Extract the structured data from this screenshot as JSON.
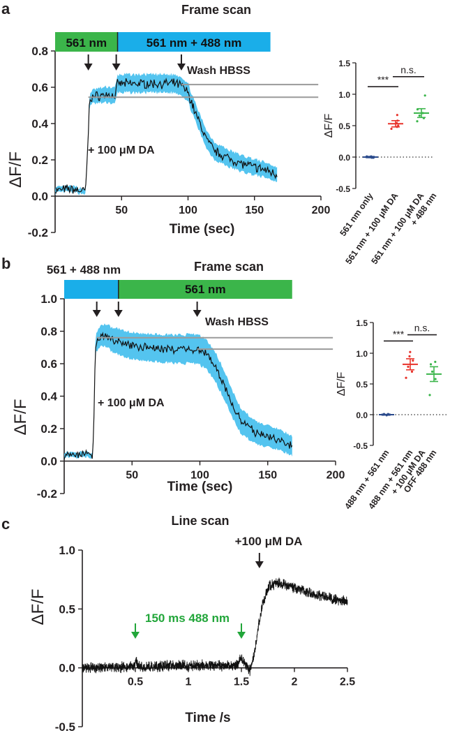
{
  "figure": {
    "panel_labels": [
      "a",
      "b",
      "c"
    ],
    "colors": {
      "green": "#3bb54a",
      "blue": "#1aaee9",
      "shade": "#54c4ef",
      "red": "#e8332b",
      "scatter_green": "#3ab54a",
      "navy": "#2a4a8c",
      "gray": "#9a9a9a",
      "text": "#231f20",
      "arrow_green": "#22a63a"
    }
  },
  "chart_data": [
    {
      "id": "a_trace",
      "type": "line",
      "title": "Frame scan",
      "xlabel": "Time (sec)",
      "ylabel": "ΔF/F",
      "xlim": [
        0,
        200
      ],
      "ylim": [
        -0.2,
        0.8
      ],
      "xticks": [
        50,
        100,
        150,
        200
      ],
      "yticks": [
        -0.2,
        0.0,
        0.2,
        0.4,
        0.6,
        0.8
      ],
      "ytick_labels": [
        "-0.2",
        "0.0",
        "0.2",
        "0.4",
        "0.6",
        "0.8"
      ],
      "bars": [
        {
          "label": "561 nm",
          "from": 0,
          "to": 47,
          "color": "green"
        },
        {
          "label": "561 nm + 488 nm",
          "from": 47,
          "to": 162,
          "color": "blue"
        }
      ],
      "arrows": [
        25,
        46,
        95
      ],
      "annotations": [
        {
          "text": "Wash HBSS",
          "x": 101,
          "y": 0.68
        },
        {
          "text": "+ 100 μM DA",
          "x": 27,
          "y": 0.28
        }
      ],
      "reference_lines": [
        {
          "y": 0.615,
          "x_from": 95,
          "x_to": 198
        },
        {
          "y": 0.545,
          "x_from": 25,
          "x_to": 198
        }
      ],
      "mean": [
        [
          0,
          0.03
        ],
        [
          10,
          0.04
        ],
        [
          20,
          0.03
        ],
        [
          23,
          0.03
        ],
        [
          25,
          0.35
        ],
        [
          26,
          0.54
        ],
        [
          30,
          0.55
        ],
        [
          40,
          0.56
        ],
        [
          45,
          0.55
        ],
        [
          47,
          0.62
        ],
        [
          60,
          0.62
        ],
        [
          75,
          0.62
        ],
        [
          90,
          0.62
        ],
        [
          95,
          0.61
        ],
        [
          100,
          0.57
        ],
        [
          105,
          0.47
        ],
        [
          110,
          0.38
        ],
        [
          115,
          0.3
        ],
        [
          120,
          0.25
        ],
        [
          130,
          0.21
        ],
        [
          140,
          0.18
        ],
        [
          150,
          0.16
        ],
        [
          160,
          0.14
        ],
        [
          167,
          0.12
        ]
      ],
      "sem": [
        [
          0,
          0.015
        ],
        [
          22,
          0.015
        ],
        [
          25,
          0.03
        ],
        [
          30,
          0.04
        ],
        [
          45,
          0.045
        ],
        [
          50,
          0.05
        ],
        [
          90,
          0.05
        ],
        [
          95,
          0.05
        ],
        [
          110,
          0.05
        ],
        [
          140,
          0.045
        ],
        [
          167,
          0.04
        ]
      ],
      "noise": 0.02
    },
    {
      "id": "a_scatter",
      "type": "scatter",
      "ylabel": "ΔF/F",
      "ylim": [
        -0.5,
        1.5
      ],
      "yticks": [
        -0.5,
        0.0,
        0.5,
        1.0,
        1.5
      ],
      "ytick_labels": [
        "-0.5",
        "0.0",
        "0.5",
        "1.0",
        "1.5"
      ],
      "categories": [
        "561 nm only",
        "561 nm + 100 μM DA",
        "561 nm + 100 μM DA + 488 nm"
      ],
      "category_lines": [
        [
          "561 nm only"
        ],
        [
          "561 nm + 100 μM DA"
        ],
        [
          "561 nm + 100 μM DA",
          "+ 488 nm"
        ]
      ],
      "series": [
        {
          "name": "561 nm only",
          "color": "navy",
          "mean": 0.0,
          "sem": 0.01,
          "points": [
            0.0,
            -0.01,
            0.01,
            0.0,
            0.0,
            0.01,
            -0.01
          ]
        },
        {
          "name": "561 nm + 100 μM DA",
          "color": "red",
          "mean": 0.53,
          "sem": 0.05,
          "points": [
            0.45,
            0.5,
            0.54,
            0.58,
            0.67,
            0.48
          ]
        },
        {
          "name": "561 nm + 100 μM DA + 488 nm",
          "color": "scatter_green",
          "mean": 0.7,
          "sem": 0.07,
          "points": [
            0.57,
            0.62,
            0.7,
            0.76,
            0.98,
            0.66
          ]
        }
      ],
      "comparisons": [
        {
          "from": 0,
          "to": 1,
          "label": "***",
          "y": 1.12
        },
        {
          "from": 1,
          "to": 2,
          "label": "n.s.",
          "y": 1.28
        }
      ]
    },
    {
      "id": "b_trace",
      "type": "line",
      "title": "Frame scan",
      "xlabel": "Time (sec)",
      "ylabel": "ΔF/F",
      "xlim": [
        0,
        200
      ],
      "ylim": [
        -0.2,
        1.0
      ],
      "xticks": [
        50,
        100,
        150,
        200
      ],
      "yticks": [
        -0.2,
        0.0,
        0.2,
        0.4,
        0.6,
        0.8,
        1.0
      ],
      "ytick_labels": [
        "-0.2",
        "0.0",
        "0.2",
        "0.4",
        "0.6",
        "0.8",
        "1.0"
      ],
      "bars": [
        {
          "label": "",
          "from": 0,
          "to": 40,
          "color": "blue"
        },
        {
          "label": "561 nm",
          "from": 40,
          "to": 168,
          "color": "green"
        }
      ],
      "bar_caption": "561 + 488 nm",
      "arrows": [
        24,
        40,
        98
      ],
      "annotations": [
        {
          "text": "Wash HBSS",
          "x": 106,
          "y": 0.86
        },
        {
          "text": "+ 100 μM DA",
          "x": 25,
          "y": 0.32
        }
      ],
      "reference_lines": [
        {
          "y": 0.76,
          "x_from": 24,
          "x_to": 198
        },
        {
          "y": 0.69,
          "x_from": 98,
          "x_to": 198
        }
      ],
      "mean": [
        [
          0,
          0.04
        ],
        [
          15,
          0.04
        ],
        [
          21,
          0.04
        ],
        [
          22,
          0.3
        ],
        [
          23,
          0.72
        ],
        [
          26,
          0.76
        ],
        [
          30,
          0.78
        ],
        [
          35,
          0.75
        ],
        [
          45,
          0.72
        ],
        [
          60,
          0.7
        ],
        [
          80,
          0.69
        ],
        [
          98,
          0.69
        ],
        [
          105,
          0.66
        ],
        [
          112,
          0.57
        ],
        [
          118,
          0.47
        ],
        [
          124,
          0.35
        ],
        [
          130,
          0.25
        ],
        [
          140,
          0.18
        ],
        [
          150,
          0.15
        ],
        [
          160,
          0.13
        ],
        [
          168,
          0.09
        ]
      ],
      "sem": [
        [
          0,
          0.015
        ],
        [
          21,
          0.015
        ],
        [
          24,
          0.06
        ],
        [
          40,
          0.08
        ],
        [
          98,
          0.09
        ],
        [
          115,
          0.09
        ],
        [
          140,
          0.07
        ],
        [
          168,
          0.06
        ]
      ],
      "noise": 0.02
    },
    {
      "id": "b_scatter",
      "type": "scatter",
      "ylabel": "ΔF/F",
      "ylim": [
        -0.5,
        1.5
      ],
      "yticks": [
        -0.5,
        0.0,
        0.5,
        1.0,
        1.5
      ],
      "ytick_labels": [
        "-0.5",
        "0.0",
        "0.5",
        "1.0",
        "1.5"
      ],
      "categories": [
        "488 nm + 561 nm",
        "488 nm + 561 nm + 100 μM DA",
        "OFF 488 nm"
      ],
      "category_lines": [
        [
          "488 nm + 561 nm"
        ],
        [
          "488 nm + 561 nm",
          "+ 100 μM DA"
        ],
        [
          "OFF 488 nm"
        ]
      ],
      "series": [
        {
          "name": "488 nm + 561 nm",
          "color": "navy",
          "mean": 0.0,
          "sem": 0.005,
          "points": [
            0.0,
            0.0,
            0.01,
            -0.01,
            0.0,
            0.0,
            0.01
          ]
        },
        {
          "name": "488 nm + 561 nm + 100 μM DA",
          "color": "red",
          "mean": 0.82,
          "sem": 0.09,
          "points": [
            0.6,
            0.7,
            0.78,
            0.88,
            0.95,
            1.02
          ]
        },
        {
          "name": "OFF 488 nm",
          "color": "scatter_green",
          "mean": 0.66,
          "sem": 0.12,
          "points": [
            0.32,
            0.58,
            0.7,
            0.82,
            0.86
          ]
        }
      ],
      "comparisons": [
        {
          "from": 0,
          "to": 1,
          "label": "***",
          "y": 1.2
        },
        {
          "from": 1,
          "to": 2,
          "label": "n.s.",
          "y": 1.3
        }
      ]
    },
    {
      "id": "c_trace",
      "type": "line",
      "title": "Line scan",
      "xlabel": "Time /s",
      "ylabel": "ΔF/F",
      "xlim": [
        0,
        2.5
      ],
      "ylim": [
        -0.5,
        1.0
      ],
      "xticks": [
        0.5,
        1,
        1.5,
        2,
        2.5
      ],
      "xtick_labels": [
        "0.5",
        "1",
        "1.5",
        "2",
        "2.5"
      ],
      "yticks": [
        -0.5,
        0.0,
        0.5,
        1.0
      ],
      "ytick_labels": [
        "-0.5",
        "0.0",
        "0.5",
        "1.0"
      ],
      "green_arrows": [
        0.5,
        1.5
      ],
      "green_label": "150 ms 488 nm",
      "black_arrows": [
        1.67
      ],
      "black_label": "+100 μM DA",
      "mean": [
        [
          0,
          0.0
        ],
        [
          0.49,
          0.01
        ],
        [
          0.5,
          0.08
        ],
        [
          0.52,
          0.03
        ],
        [
          0.55,
          0.01
        ],
        [
          1.0,
          0.02
        ],
        [
          1.45,
          0.02
        ],
        [
          1.5,
          0.08
        ],
        [
          1.53,
          0.03
        ],
        [
          1.58,
          -0.02
        ],
        [
          1.62,
          0.1
        ],
        [
          1.66,
          0.35
        ],
        [
          1.7,
          0.55
        ],
        [
          1.76,
          0.7
        ],
        [
          1.85,
          0.72
        ],
        [
          2.0,
          0.68
        ],
        [
          2.2,
          0.62
        ],
        [
          2.35,
          0.59
        ],
        [
          2.5,
          0.56
        ]
      ],
      "noise": 0.035
    }
  ]
}
